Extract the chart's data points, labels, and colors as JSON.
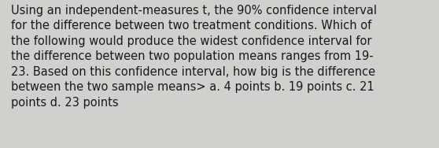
{
  "text": "Using an independent-measures t, the 90% confidence interval\nfor the difference between two treatment conditions. Which of\nthe following would produce the widest confidence interval for\nthe difference between two population means ranges from 19-\n23. Based on this confidence interval, how big is the difference\nbetween the two sample means> a. 4 points b. 19 points c. 21\npoints d. 23 points",
  "background_color": "#d0d0cc",
  "text_color": "#1a1a1a",
  "font_size": 10.5,
  "fig_width": 5.58,
  "fig_height": 1.88,
  "dpi": 100
}
